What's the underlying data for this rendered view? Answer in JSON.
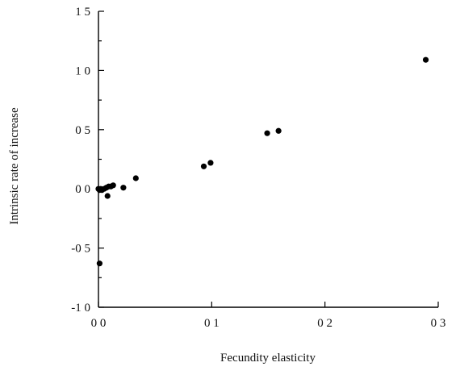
{
  "chart_data": {
    "type": "scatter",
    "xlabel": "Fecundity elasticity",
    "ylabel": "Intrinsic rate of increase",
    "xlim": [
      0.0,
      0.3
    ],
    "ylim": [
      -1.0,
      1.5
    ],
    "x_ticks": [
      {
        "value": 0.0,
        "label": "0 0"
      },
      {
        "value": 0.1,
        "label": "0 1"
      },
      {
        "value": 0.2,
        "label": "0 2"
      },
      {
        "value": 0.3,
        "label": "0 3"
      }
    ],
    "y_ticks": [
      {
        "value": 1.5,
        "label": "1 5"
      },
      {
        "value": 1.0,
        "label": "1 0"
      },
      {
        "value": 0.5,
        "label": "0 5"
      },
      {
        "value": 0.0,
        "label": "0 0"
      },
      {
        "value": -0.5,
        "label": "-0 5"
      },
      {
        "value": -1.0,
        "label": "-1 0"
      }
    ],
    "y_minor_ticks": [
      1.25,
      0.75,
      0.25,
      -0.25,
      -0.75
    ],
    "grid": false,
    "points": [
      {
        "x": 0.0,
        "y": 0.0
      },
      {
        "x": 0.001,
        "y": -0.01
      },
      {
        "x": 0.002,
        "y": 0.0
      },
      {
        "x": 0.003,
        "y": -0.01
      },
      {
        "x": 0.005,
        "y": 0.0
      },
      {
        "x": 0.001,
        "y": -0.63
      },
      {
        "x": 0.007,
        "y": 0.01
      },
      {
        "x": 0.009,
        "y": 0.02
      },
      {
        "x": 0.011,
        "y": 0.02
      },
      {
        "x": 0.013,
        "y": 0.03
      },
      {
        "x": 0.008,
        "y": -0.06
      },
      {
        "x": 0.022,
        "y": 0.01
      },
      {
        "x": 0.033,
        "y": 0.09
      },
      {
        "x": 0.093,
        "y": 0.19
      },
      {
        "x": 0.099,
        "y": 0.22
      },
      {
        "x": 0.149,
        "y": 0.47
      },
      {
        "x": 0.159,
        "y": 0.49
      },
      {
        "x": 0.289,
        "y": 1.09
      }
    ]
  }
}
